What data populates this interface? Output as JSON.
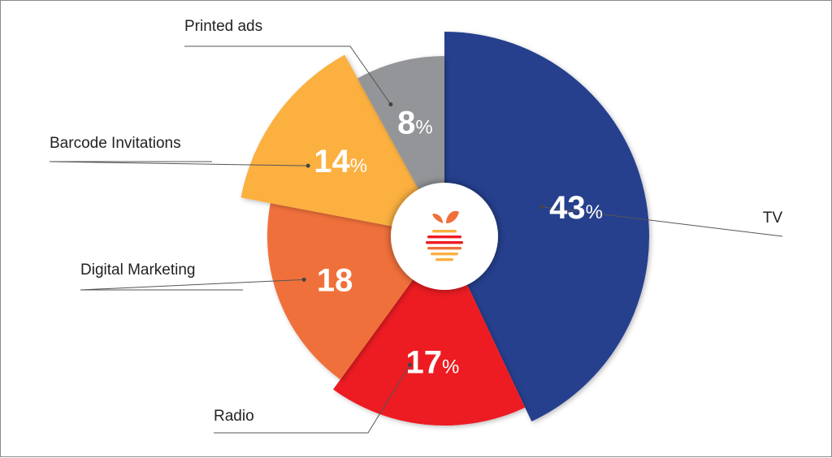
{
  "chart_data": {
    "type": "pie",
    "variant": "donut",
    "title": "",
    "slices": [
      {
        "label": "TV",
        "value": 43,
        "display": "43",
        "unit": "%",
        "color": "#253F8E"
      },
      {
        "label": "Radio",
        "value": 17,
        "display": "17",
        "unit": "%",
        "color": "#EC1C24"
      },
      {
        "label": "Digital Marketing",
        "value": 18,
        "display": "18",
        "unit": "",
        "color": "#F0703A"
      },
      {
        "label": "Barcode Invitations",
        "value": 14,
        "display": "14",
        "unit": "%",
        "color": "#FBB040"
      },
      {
        "label": "Printed ads",
        "value": 8,
        "display": "8",
        "unit": "%",
        "color": "#939598"
      }
    ],
    "center_icon": "stylized-apple-logo-icon",
    "center_icon_colors": [
      "#F0703A",
      "#EC1C24",
      "#FBB040"
    ],
    "legend": "none",
    "grid": false
  }
}
